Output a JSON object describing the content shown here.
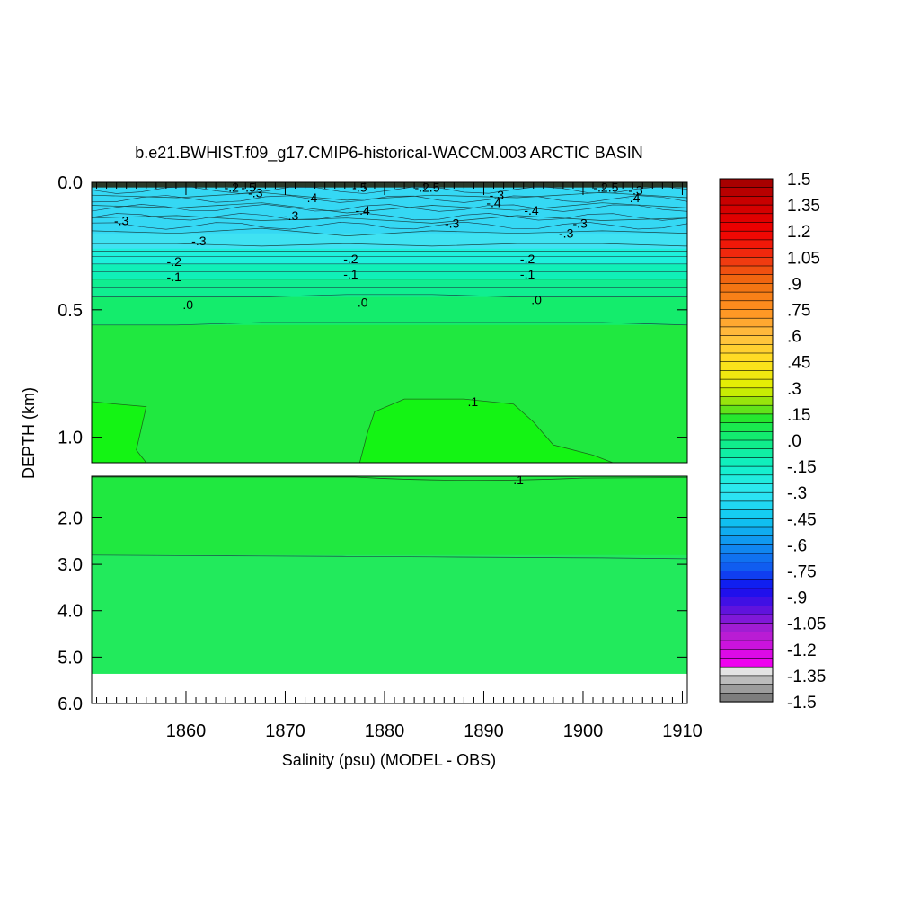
{
  "chart_data": {
    "type": "heatmap",
    "title": "b.e21.BWHIST.f09_g17.CMIP6-historical-WACCM.003 ARCTIC BASIN",
    "xlabel": "Salinity (psu) (MODEL - OBS)",
    "ylabel": "DEPTH (km)",
    "xlim": [
      1850.5,
      1910.5
    ],
    "x_ticks": [
      "1860",
      "1870",
      "1880",
      "1890",
      "1900",
      "1910"
    ],
    "upper_panel": {
      "ylim": [
        0.0,
        1.1
      ],
      "y_ticks": [
        "0.0",
        "0.5",
        "1.0"
      ]
    },
    "lower_panel": {
      "ylim": [
        1.1,
        6.0
      ],
      "y_ticks": [
        "2.0",
        "3.0",
        "4.0",
        "5.0",
        "6.0"
      ]
    },
    "colorbar": {
      "min": -1.5,
      "max": 1.5,
      "step": 0.05,
      "labels": [
        "1.5",
        "1.35",
        "1.2",
        "1.05",
        ".9",
        ".75",
        ".6",
        ".45",
        ".3",
        ".15",
        ".0",
        "-.15",
        "-.3",
        "-.45",
        "-.6",
        "-.75",
        "-.9",
        "-1.05",
        "-1.2",
        "-1.35",
        "-1.5"
      ]
    },
    "bands": [
      {
        "top": 0.0,
        "bottom": 0.02,
        "value": -1.5,
        "color": "#2a3a2a"
      },
      {
        "top": 0.02,
        "bottom": 0.2,
        "value": -0.35,
        "color": "#35d8f4"
      },
      {
        "top": 0.2,
        "bottom": 0.26,
        "value": -0.32,
        "color": "#3fe2f2"
      },
      {
        "top": 0.26,
        "bottom": 0.32,
        "value": -0.22,
        "color": "#1ef0dc"
      },
      {
        "top": 0.32,
        "bottom": 0.38,
        "value": -0.12,
        "color": "#10f0b8"
      },
      {
        "top": 0.38,
        "bottom": 0.45,
        "value": -0.05,
        "color": "#10ee90"
      },
      {
        "top": 0.45,
        "bottom": 0.56,
        "value": 0.02,
        "color": "#14ec6c"
      },
      {
        "top": 0.56,
        "bottom": 2.8,
        "value": 0.08,
        "color": "#20e840"
      },
      {
        "top": 2.8,
        "bottom": 5.35,
        "value": 0.03,
        "color": "#22ea5c"
      }
    ],
    "contour_labels": [
      {
        "text": "-.2",
        "x": 1864.6,
        "depth": 0.02
      },
      {
        "text": "-.5",
        "x": 1866.3,
        "depth": 0.02
      },
      {
        "text": "-.3",
        "x": 1867.0,
        "depth": 0.04
      },
      {
        "text": "-.5",
        "x": 1877.5,
        "depth": 0.02
      },
      {
        "text": "-.2.5",
        "x": 1884.3,
        "depth": 0.02
      },
      {
        "text": "-.4",
        "x": 1872.5,
        "depth": 0.06
      },
      {
        "text": "-.4",
        "x": 1877.8,
        "depth": 0.11
      },
      {
        "text": "-.3",
        "x": 1870.6,
        "depth": 0.13
      },
      {
        "text": "-.3",
        "x": 1853.5,
        "depth": 0.15
      },
      {
        "text": "-.3",
        "x": 1891.3,
        "depth": 0.05
      },
      {
        "text": "-.4",
        "x": 1891.0,
        "depth": 0.08
      },
      {
        "text": "-.4",
        "x": 1894.8,
        "depth": 0.11
      },
      {
        "text": "-.3",
        "x": 1886.8,
        "depth": 0.16
      },
      {
        "text": "-.3",
        "x": 1899.7,
        "depth": 0.16
      },
      {
        "text": "-.3",
        "x": 1898.3,
        "depth": 0.2
      },
      {
        "text": "-.2.5",
        "x": 1902.3,
        "depth": 0.02
      },
      {
        "text": "-.3",
        "x": 1905.3,
        "depth": 0.03
      },
      {
        "text": "-.4",
        "x": 1905.0,
        "depth": 0.06
      },
      {
        "text": "-.3",
        "x": 1861.3,
        "depth": 0.23
      },
      {
        "text": "-.2",
        "x": 1858.8,
        "depth": 0.31
      },
      {
        "text": "-.1",
        "x": 1858.8,
        "depth": 0.37
      },
      {
        "text": "-.2",
        "x": 1876.6,
        "depth": 0.3
      },
      {
        "text": "-.1",
        "x": 1876.6,
        "depth": 0.36
      },
      {
        "text": "-.2",
        "x": 1894.4,
        "depth": 0.3
      },
      {
        "text": "-.1",
        "x": 1894.4,
        "depth": 0.36
      },
      {
        "text": ".0",
        "x": 1860.2,
        "depth": 0.48
      },
      {
        "text": ".0",
        "x": 1877.8,
        "depth": 0.47
      },
      {
        "text": ".0",
        "x": 1895.3,
        "depth": 0.46
      },
      {
        "text": ".1",
        "x": 1888.9,
        "depth": 0.86
      },
      {
        "text": ".1",
        "x": 1893.5,
        "depth": 1.18
      }
    ],
    "contour_lines": [
      {
        "depths": [
          0.05,
          0.06,
          0.04,
          0.07,
          0.05,
          0.06,
          0.04,
          0.06
        ]
      },
      {
        "depths": [
          0.09,
          0.1,
          0.08,
          0.12,
          0.09,
          0.11,
          0.08,
          0.1
        ]
      },
      {
        "depths": [
          0.14,
          0.13,
          0.15,
          0.14,
          0.16,
          0.13,
          0.15,
          0.14
        ]
      },
      {
        "depths": [
          0.19,
          0.2,
          0.18,
          0.21,
          0.19,
          0.2,
          0.19,
          0.2
        ]
      },
      {
        "depths": [
          0.24,
          0.24,
          0.25,
          0.24,
          0.25,
          0.24,
          0.24,
          0.25
        ]
      },
      {
        "depths": [
          0.27,
          0.27,
          0.27,
          0.27,
          0.27,
          0.27,
          0.27,
          0.27
        ]
      },
      {
        "depths": [
          0.29,
          0.29,
          0.29,
          0.29,
          0.29,
          0.29,
          0.29,
          0.29
        ]
      },
      {
        "depths": [
          0.32,
          0.32,
          0.32,
          0.32,
          0.32,
          0.32,
          0.32,
          0.32
        ]
      },
      {
        "depths": [
          0.35,
          0.35,
          0.35,
          0.35,
          0.35,
          0.35,
          0.35,
          0.35
        ]
      },
      {
        "depths": [
          0.38,
          0.38,
          0.38,
          0.38,
          0.38,
          0.38,
          0.38,
          0.38
        ]
      },
      {
        "depths": [
          0.41,
          0.41,
          0.41,
          0.41,
          0.41,
          0.41,
          0.41,
          0.41
        ]
      },
      {
        "depths": [
          0.45,
          0.45,
          0.45,
          0.44,
          0.44,
          0.45,
          0.45,
          0.45
        ]
      },
      {
        "depths": [
          0.56,
          0.56,
          0.55,
          0.55,
          0.55,
          0.55,
          0.55,
          0.56
        ]
      },
      {
        "depths": [
          2.8,
          2.81,
          2.82,
          2.83,
          2.84,
          2.85,
          2.86,
          2.88
        ]
      }
    ],
    "regions_0_1": [
      {
        "points": [
          [
            1850.5,
            0.86
          ],
          [
            1853.0,
            0.87
          ],
          [
            1856.0,
            0.88
          ],
          [
            1855.0,
            1.05
          ],
          [
            1856.0,
            1.1
          ],
          [
            1850.5,
            1.1
          ]
        ]
      },
      {
        "points": [
          [
            1877.5,
            1.1
          ],
          [
            1878.3,
            0.98
          ],
          [
            1879.0,
            0.9
          ],
          [
            1882.0,
            0.85
          ],
          [
            1888.0,
            0.85
          ],
          [
            1893.0,
            0.87
          ],
          [
            1895.0,
            0.94
          ],
          [
            1897.0,
            1.03
          ],
          [
            1901.0,
            1.07
          ],
          [
            1903.0,
            1.1
          ]
        ]
      }
    ]
  }
}
